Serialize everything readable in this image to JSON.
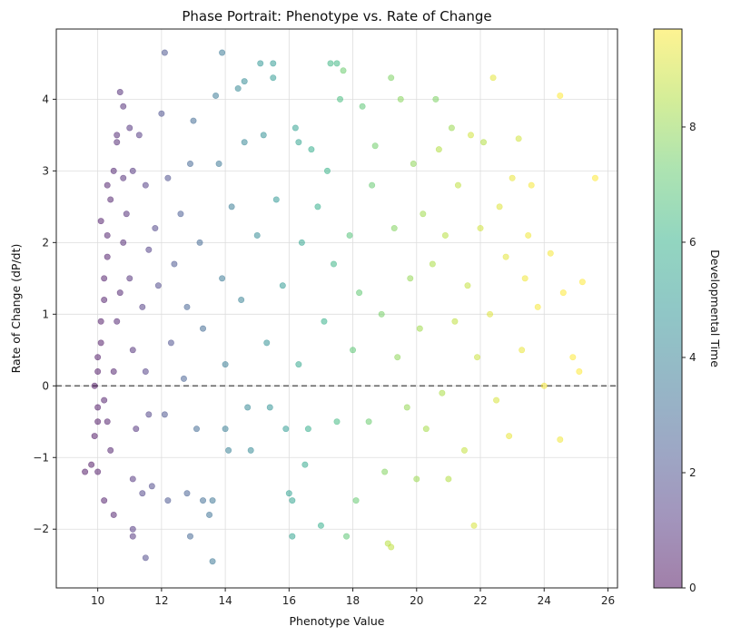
{
  "chart_data": {
    "type": "scatter",
    "title": "Phase Portrait: Phenotype vs. Rate of Change",
    "xlabel": "Phenotype Value",
    "ylabel": "Rate of Change (dP/dt)",
    "xlim": [
      8.7,
      26.3
    ],
    "ylim": [
      -2.82,
      4.98
    ],
    "xticks": [
      10,
      12,
      14,
      16,
      18,
      20,
      22,
      24,
      26
    ],
    "yticks": [
      -2,
      -1,
      0,
      1,
      2,
      3,
      4
    ],
    "grid": true,
    "reference_line": {
      "y": 0,
      "style": "dashed",
      "color": "#666666"
    },
    "point_alpha": 0.5,
    "colorbar": {
      "label": "Developmental Time",
      "range": [
        0,
        9.7
      ],
      "ticks": [
        0,
        2,
        4,
        6,
        8
      ],
      "colormap": "viridis"
    },
    "points": [
      {
        "x": 9.6,
        "y": -1.2,
        "t": 0.2
      },
      {
        "x": 9.8,
        "y": -1.1,
        "t": 0.2
      },
      {
        "x": 10.0,
        "y": -1.2,
        "t": 0.3
      },
      {
        "x": 9.9,
        "y": -0.7,
        "t": 0.2
      },
      {
        "x": 10.0,
        "y": -0.5,
        "t": 0.2
      },
      {
        "x": 10.0,
        "y": -0.3,
        "t": 0.3
      },
      {
        "x": 9.9,
        "y": 0.0,
        "t": 0.2
      },
      {
        "x": 10.0,
        "y": 0.2,
        "t": 0.3
      },
      {
        "x": 10.0,
        "y": 0.4,
        "t": 0.3
      },
      {
        "x": 10.1,
        "y": 0.6,
        "t": 0.3
      },
      {
        "x": 10.1,
        "y": 0.9,
        "t": 0.3
      },
      {
        "x": 10.2,
        "y": 1.2,
        "t": 0.4
      },
      {
        "x": 10.2,
        "y": 1.5,
        "t": 0.4
      },
      {
        "x": 10.3,
        "y": 1.8,
        "t": 0.4
      },
      {
        "x": 10.3,
        "y": 2.1,
        "t": 0.5
      },
      {
        "x": 10.1,
        "y": 2.3,
        "t": 0.4
      },
      {
        "x": 10.3,
        "y": 2.8,
        "t": 0.5
      },
      {
        "x": 10.4,
        "y": 2.6,
        "t": 0.5
      },
      {
        "x": 10.5,
        "y": 3.0,
        "t": 0.6
      },
      {
        "x": 10.6,
        "y": 3.5,
        "t": 0.7
      },
      {
        "x": 10.7,
        "y": 4.1,
        "t": 0.8
      },
      {
        "x": 10.8,
        "y": 3.9,
        "t": 0.8
      },
      {
        "x": 10.6,
        "y": 3.4,
        "t": 0.7
      },
      {
        "x": 10.8,
        "y": 2.9,
        "t": 0.8
      },
      {
        "x": 10.2,
        "y": -0.2,
        "t": 0.4
      },
      {
        "x": 10.3,
        "y": -0.5,
        "t": 0.4
      },
      {
        "x": 10.4,
        "y": -0.9,
        "t": 0.5
      },
      {
        "x": 10.2,
        "y": -1.6,
        "t": 0.4
      },
      {
        "x": 10.5,
        "y": -1.8,
        "t": 0.5
      },
      {
        "x": 10.5,
        "y": 0.2,
        "t": 0.5
      },
      {
        "x": 10.6,
        "y": 0.9,
        "t": 0.6
      },
      {
        "x": 10.7,
        "y": 1.3,
        "t": 0.6
      },
      {
        "x": 10.8,
        "y": 2.0,
        "t": 0.7
      },
      {
        "x": 10.9,
        "y": 2.4,
        "t": 0.8
      },
      {
        "x": 11.0,
        "y": 1.5,
        "t": 0.9
      },
      {
        "x": 11.1,
        "y": 0.5,
        "t": 0.9
      },
      {
        "x": 11.2,
        "y": -0.6,
        "t": 1.0
      },
      {
        "x": 11.1,
        "y": -1.3,
        "t": 1.1
      },
      {
        "x": 11.1,
        "y": -2.0,
        "t": 1.2
      },
      {
        "x": 11.1,
        "y": -2.1,
        "t": 1.1
      },
      {
        "x": 11.3,
        "y": 3.5,
        "t": 1.2
      },
      {
        "x": 11.1,
        "y": 3.0,
        "t": 1.1
      },
      {
        "x": 11.0,
        "y": 3.6,
        "t": 1.0
      },
      {
        "x": 11.5,
        "y": 2.8,
        "t": 1.3
      },
      {
        "x": 11.6,
        "y": 1.9,
        "t": 1.4
      },
      {
        "x": 11.4,
        "y": 1.1,
        "t": 1.3
      },
      {
        "x": 11.5,
        "y": 0.2,
        "t": 1.4
      },
      {
        "x": 11.6,
        "y": -0.4,
        "t": 1.5
      },
      {
        "x": 11.4,
        "y": -1.5,
        "t": 1.6
      },
      {
        "x": 11.5,
        "y": -2.4,
        "t": 1.7
      },
      {
        "x": 11.7,
        "y": -1.4,
        "t": 1.7
      },
      {
        "x": 11.8,
        "y": 2.2,
        "t": 1.6
      },
      {
        "x": 11.9,
        "y": 1.4,
        "t": 1.7
      },
      {
        "x": 12.0,
        "y": 3.8,
        "t": 2.0
      },
      {
        "x": 12.1,
        "y": 4.65,
        "t": 2.1
      },
      {
        "x": 12.2,
        "y": 2.9,
        "t": 1.9
      },
      {
        "x": 12.3,
        "y": 0.6,
        "t": 2.0
      },
      {
        "x": 12.1,
        "y": -0.4,
        "t": 2.1
      },
      {
        "x": 12.2,
        "y": -1.6,
        "t": 2.2
      },
      {
        "x": 12.4,
        "y": 1.7,
        "t": 2.2
      },
      {
        "x": 12.6,
        "y": 2.4,
        "t": 2.4
      },
      {
        "x": 12.8,
        "y": -1.5,
        "t": 2.6
      },
      {
        "x": 12.9,
        "y": -2.1,
        "t": 2.8
      },
      {
        "x": 12.7,
        "y": 0.1,
        "t": 2.6
      },
      {
        "x": 12.8,
        "y": 1.1,
        "t": 2.7
      },
      {
        "x": 12.9,
        "y": 3.1,
        "t": 2.8
      },
      {
        "x": 13.0,
        "y": 3.7,
        "t": 3.0
      },
      {
        "x": 13.2,
        "y": 2.0,
        "t": 2.9
      },
      {
        "x": 13.3,
        "y": 0.8,
        "t": 3.0
      },
      {
        "x": 13.1,
        "y": -0.6,
        "t": 3.0
      },
      {
        "x": 13.3,
        "y": -1.6,
        "t": 3.1
      },
      {
        "x": 13.5,
        "y": -1.8,
        "t": 3.3
      },
      {
        "x": 13.6,
        "y": -1.6,
        "t": 3.4
      },
      {
        "x": 13.6,
        "y": -2.45,
        "t": 3.5
      },
      {
        "x": 13.7,
        "y": 4.05,
        "t": 3.6
      },
      {
        "x": 13.9,
        "y": 4.65,
        "t": 3.6
      },
      {
        "x": 13.8,
        "y": 3.1,
        "t": 3.5
      },
      {
        "x": 13.9,
        "y": 1.5,
        "t": 3.6
      },
      {
        "x": 14.0,
        "y": 0.3,
        "t": 3.7
      },
      {
        "x": 14.0,
        "y": -0.6,
        "t": 3.8
      },
      {
        "x": 14.1,
        "y": -0.9,
        "t": 3.9
      },
      {
        "x": 14.2,
        "y": 2.5,
        "t": 3.7
      },
      {
        "x": 14.4,
        "y": 4.15,
        "t": 4.2
      },
      {
        "x": 14.6,
        "y": 4.25,
        "t": 4.4
      },
      {
        "x": 14.6,
        "y": 3.4,
        "t": 4.1
      },
      {
        "x": 14.5,
        "y": 1.2,
        "t": 4.0
      },
      {
        "x": 14.7,
        "y": -0.3,
        "t": 4.2
      },
      {
        "x": 14.8,
        "y": -0.9,
        "t": 4.3
      },
      {
        "x": 15.0,
        "y": 2.1,
        "t": 4.4
      },
      {
        "x": 15.1,
        "y": 4.5,
        "t": 4.8
      },
      {
        "x": 15.2,
        "y": 3.5,
        "t": 4.6
      },
      {
        "x": 15.3,
        "y": 0.6,
        "t": 4.6
      },
      {
        "x": 15.4,
        "y": -0.3,
        "t": 4.7
      },
      {
        "x": 15.5,
        "y": 4.5,
        "t": 5.0
      },
      {
        "x": 15.5,
        "y": 4.3,
        "t": 5.0
      },
      {
        "x": 15.6,
        "y": 2.6,
        "t": 4.9
      },
      {
        "x": 15.8,
        "y": 1.4,
        "t": 5.0
      },
      {
        "x": 15.9,
        "y": -0.6,
        "t": 5.1
      },
      {
        "x": 16.0,
        "y": -1.5,
        "t": 5.3
      },
      {
        "x": 16.1,
        "y": -2.1,
        "t": 5.4
      },
      {
        "x": 16.1,
        "y": -1.6,
        "t": 5.4
      },
      {
        "x": 16.2,
        "y": 3.6,
        "t": 5.3
      },
      {
        "x": 16.3,
        "y": 3.4,
        "t": 5.4
      },
      {
        "x": 16.4,
        "y": 2.0,
        "t": 5.5
      },
      {
        "x": 16.3,
        "y": 0.3,
        "t": 5.6
      },
      {
        "x": 16.5,
        "y": -1.1,
        "t": 5.7
      },
      {
        "x": 16.6,
        "y": -0.6,
        "t": 5.8
      },
      {
        "x": 16.7,
        "y": 3.3,
        "t": 5.8
      },
      {
        "x": 16.9,
        "y": 2.5,
        "t": 5.9
      },
      {
        "x": 17.0,
        "y": -1.95,
        "t": 5.9
      },
      {
        "x": 17.1,
        "y": 0.9,
        "t": 6.0
      },
      {
        "x": 17.2,
        "y": 3.0,
        "t": 6.1
      },
      {
        "x": 17.3,
        "y": 4.5,
        "t": 6.3
      },
      {
        "x": 17.5,
        "y": 4.5,
        "t": 6.3
      },
      {
        "x": 17.4,
        "y": 1.7,
        "t": 6.2
      },
      {
        "x": 17.5,
        "y": -0.5,
        "t": 6.4
      },
      {
        "x": 17.6,
        "y": 4.0,
        "t": 6.5
      },
      {
        "x": 17.7,
        "y": 4.4,
        "t": 7.3
      },
      {
        "x": 17.8,
        "y": -2.1,
        "t": 7.0
      },
      {
        "x": 17.9,
        "y": 2.1,
        "t": 6.8
      },
      {
        "x": 18.0,
        "y": 0.5,
        "t": 7.0
      },
      {
        "x": 18.1,
        "y": -1.6,
        "t": 7.2
      },
      {
        "x": 18.2,
        "y": 1.3,
        "t": 7.1
      },
      {
        "x": 18.3,
        "y": 3.9,
        "t": 7.0
      },
      {
        "x": 18.5,
        "y": -0.5,
        "t": 7.3
      },
      {
        "x": 18.6,
        "y": 2.8,
        "t": 7.2
      },
      {
        "x": 18.7,
        "y": 3.35,
        "t": 7.4
      },
      {
        "x": 18.9,
        "y": 1.0,
        "t": 7.5
      },
      {
        "x": 19.0,
        "y": -1.2,
        "t": 7.7
      },
      {
        "x": 19.1,
        "y": -2.2,
        "t": 8.6
      },
      {
        "x": 19.2,
        "y": -2.25,
        "t": 8.7
      },
      {
        "x": 19.2,
        "y": 4.3,
        "t": 7.6
      },
      {
        "x": 19.3,
        "y": 2.2,
        "t": 7.7
      },
      {
        "x": 19.4,
        "y": 0.4,
        "t": 7.9
      },
      {
        "x": 19.5,
        "y": 4.0,
        "t": 7.8
      },
      {
        "x": 19.7,
        "y": -0.3,
        "t": 8.0
      },
      {
        "x": 19.8,
        "y": 1.5,
        "t": 8.0
      },
      {
        "x": 19.9,
        "y": 3.1,
        "t": 7.9
      },
      {
        "x": 20.0,
        "y": -1.3,
        "t": 8.1
      },
      {
        "x": 20.1,
        "y": 0.8,
        "t": 8.2
      },
      {
        "x": 20.2,
        "y": 2.4,
        "t": 8.2
      },
      {
        "x": 20.3,
        "y": -0.6,
        "t": 8.3
      },
      {
        "x": 20.5,
        "y": 1.7,
        "t": 8.4
      },
      {
        "x": 20.6,
        "y": 4.0,
        "t": 7.6
      },
      {
        "x": 20.7,
        "y": 3.3,
        "t": 8.5
      },
      {
        "x": 20.8,
        "y": -0.1,
        "t": 8.4
      },
      {
        "x": 20.9,
        "y": 2.1,
        "t": 8.6
      },
      {
        "x": 21.0,
        "y": -1.3,
        "t": 8.5
      },
      {
        "x": 21.1,
        "y": 3.6,
        "t": 8.1
      },
      {
        "x": 21.2,
        "y": 0.9,
        "t": 8.7
      },
      {
        "x": 21.3,
        "y": 2.8,
        "t": 8.7
      },
      {
        "x": 21.5,
        "y": -0.9,
        "t": 8.8
      },
      {
        "x": 21.6,
        "y": 1.4,
        "t": 8.8
      },
      {
        "x": 21.7,
        "y": 3.5,
        "t": 9.0
      },
      {
        "x": 21.8,
        "y": -1.95,
        "t": 9.1
      },
      {
        "x": 21.9,
        "y": 0.4,
        "t": 8.9
      },
      {
        "x": 22.0,
        "y": 2.2,
        "t": 9.0
      },
      {
        "x": 22.1,
        "y": 3.4,
        "t": 8.5
      },
      {
        "x": 22.3,
        "y": 1.0,
        "t": 9.2
      },
      {
        "x": 22.4,
        "y": 4.3,
        "t": 9.3
      },
      {
        "x": 22.5,
        "y": -0.2,
        "t": 9.1
      },
      {
        "x": 22.6,
        "y": 2.5,
        "t": 9.2
      },
      {
        "x": 22.8,
        "y": 1.8,
        "t": 9.3
      },
      {
        "x": 22.9,
        "y": -0.7,
        "t": 9.4
      },
      {
        "x": 23.0,
        "y": 2.9,
        "t": 9.4
      },
      {
        "x": 23.2,
        "y": 3.45,
        "t": 9.0
      },
      {
        "x": 23.3,
        "y": 0.5,
        "t": 9.4
      },
      {
        "x": 23.4,
        "y": 1.5,
        "t": 9.5
      },
      {
        "x": 23.5,
        "y": 2.1,
        "t": 9.5
      },
      {
        "x": 23.6,
        "y": 2.8,
        "t": 9.6
      },
      {
        "x": 23.8,
        "y": 1.1,
        "t": 9.6
      },
      {
        "x": 24.0,
        "y": 0.0,
        "t": 9.6
      },
      {
        "x": 24.2,
        "y": 1.85,
        "t": 9.6
      },
      {
        "x": 24.5,
        "y": -0.75,
        "t": 9.5
      },
      {
        "x": 24.5,
        "y": 4.05,
        "t": 9.7
      },
      {
        "x": 24.6,
        "y": 1.3,
        "t": 9.7
      },
      {
        "x": 24.9,
        "y": 0.4,
        "t": 9.7
      },
      {
        "x": 25.1,
        "y": 0.2,
        "t": 9.7
      },
      {
        "x": 25.2,
        "y": 1.45,
        "t": 9.7
      },
      {
        "x": 25.6,
        "y": 2.9,
        "t": 9.7
      }
    ]
  }
}
